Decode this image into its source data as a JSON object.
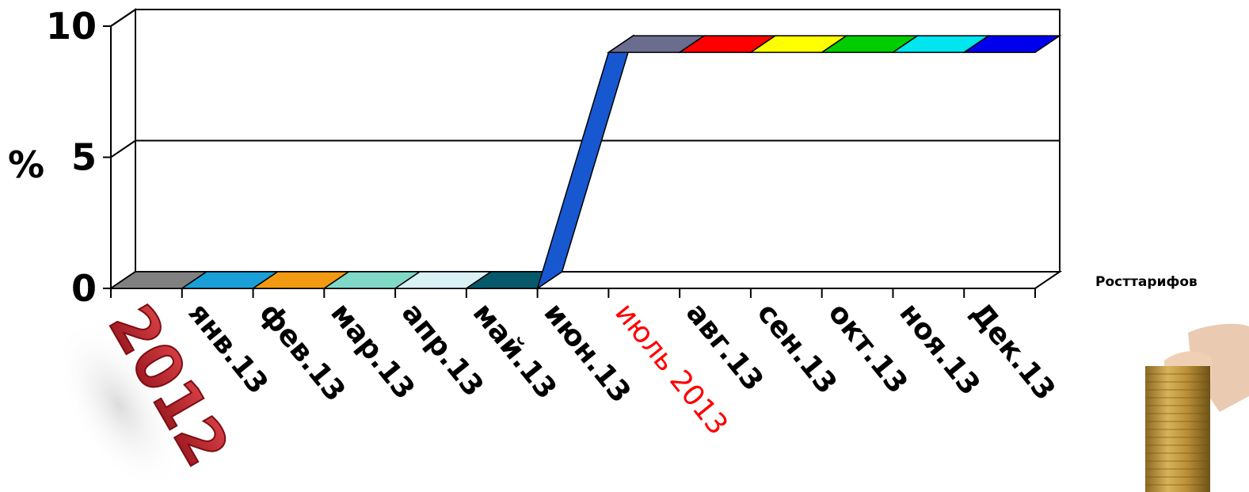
{
  "chart_data": {
    "type": "line",
    "style": "3d-ribbon",
    "yticks": [
      "0",
      "5",
      "10"
    ],
    "ylabel": "%",
    "ylim": [
      0,
      10
    ],
    "grid": true,
    "categories": [
      "2012",
      "янв.13",
      "фев.13",
      "мар.13",
      "апр.13",
      "май.13",
      "июн.13",
      "июль 2013",
      "авг.13",
      "сен.13",
      "окт.13",
      "ноя.13",
      "Дек.13"
    ],
    "highlight_category": "июль 2013",
    "series": [
      {
        "name": "Росттарифов",
        "values": [
          0,
          0,
          0,
          0,
          0,
          0,
          0,
          9,
          9,
          9,
          9,
          9,
          9
        ]
      }
    ],
    "segment_colors": [
      "#808080",
      "#1a9fd8",
      "#f29a12",
      "#7fd9c6",
      "#d9f0f4",
      "#06596b",
      "#1758d1",
      "#6a6d8e",
      "#ff0000",
      "#ffff00",
      "#00cc00",
      "#00e5ee",
      "#0000ee"
    ],
    "legend_position": "right"
  },
  "colors": {
    "highlight_label": "#ff0000",
    "year_badge": "#c8242b"
  }
}
